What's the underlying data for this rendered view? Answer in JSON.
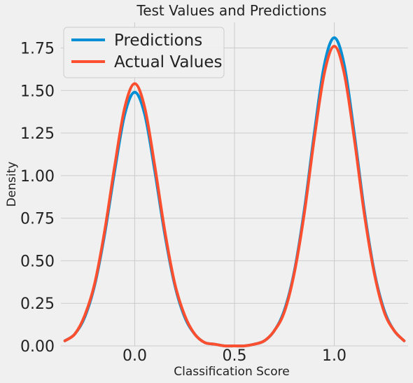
{
  "chart_data": {
    "type": "line",
    "title": "Test Values and Predictions",
    "xlabel": "Classification Score",
    "ylabel": "Density",
    "xlim": [
      -0.37,
      1.37
    ],
    "ylim": [
      0,
      1.9
    ],
    "xticks": [
      "0.0",
      "0.5",
      "1.0"
    ],
    "xtick_values": [
      0,
      0.5,
      1
    ],
    "yticks": [
      "0.00",
      "0.25",
      "0.50",
      "0.75",
      "1.00",
      "1.25",
      "1.50",
      "1.75"
    ],
    "ytick_values": [
      0,
      0.25,
      0.5,
      0.75,
      1.0,
      1.25,
      1.5,
      1.75
    ],
    "grid": true,
    "legend_position": "top-left",
    "series": [
      {
        "name": "Predictions",
        "color": "#008fd5",
        "x": [
          -0.35,
          -0.3,
          -0.25,
          -0.2,
          -0.15,
          -0.1,
          -0.05,
          0.0,
          0.05,
          0.1,
          0.15,
          0.2,
          0.25,
          0.3,
          0.35,
          0.4,
          0.45,
          0.5,
          0.55,
          0.6,
          0.65,
          0.7,
          0.75,
          0.8,
          0.85,
          0.9,
          0.95,
          1.0,
          1.05,
          1.1,
          1.15,
          1.2,
          1.25,
          1.3,
          1.35
        ],
        "y": [
          0.03,
          0.07,
          0.17,
          0.36,
          0.66,
          1.03,
          1.36,
          1.49,
          1.36,
          1.03,
          0.66,
          0.36,
          0.17,
          0.07,
          0.02,
          0.01,
          0.0,
          0.0,
          0.0,
          0.01,
          0.03,
          0.09,
          0.21,
          0.44,
          0.8,
          1.25,
          1.65,
          1.81,
          1.65,
          1.25,
          0.8,
          0.44,
          0.21,
          0.09,
          0.03
        ]
      },
      {
        "name": "Actual Values",
        "color": "#fc4f30",
        "x": [
          -0.35,
          -0.3,
          -0.25,
          -0.2,
          -0.15,
          -0.1,
          -0.05,
          0.0,
          0.05,
          0.1,
          0.15,
          0.2,
          0.25,
          0.3,
          0.35,
          0.4,
          0.45,
          0.5,
          0.55,
          0.6,
          0.65,
          0.7,
          0.75,
          0.8,
          0.85,
          0.9,
          0.95,
          1.0,
          1.05,
          1.1,
          1.15,
          1.2,
          1.25,
          1.3,
          1.35
        ],
        "y": [
          0.03,
          0.07,
          0.18,
          0.37,
          0.68,
          1.06,
          1.4,
          1.54,
          1.4,
          1.06,
          0.68,
          0.37,
          0.18,
          0.07,
          0.02,
          0.01,
          0.0,
          0.0,
          0.0,
          0.01,
          0.03,
          0.09,
          0.2,
          0.43,
          0.78,
          1.22,
          1.6,
          1.76,
          1.6,
          1.22,
          0.78,
          0.43,
          0.2,
          0.09,
          0.03
        ]
      }
    ]
  }
}
